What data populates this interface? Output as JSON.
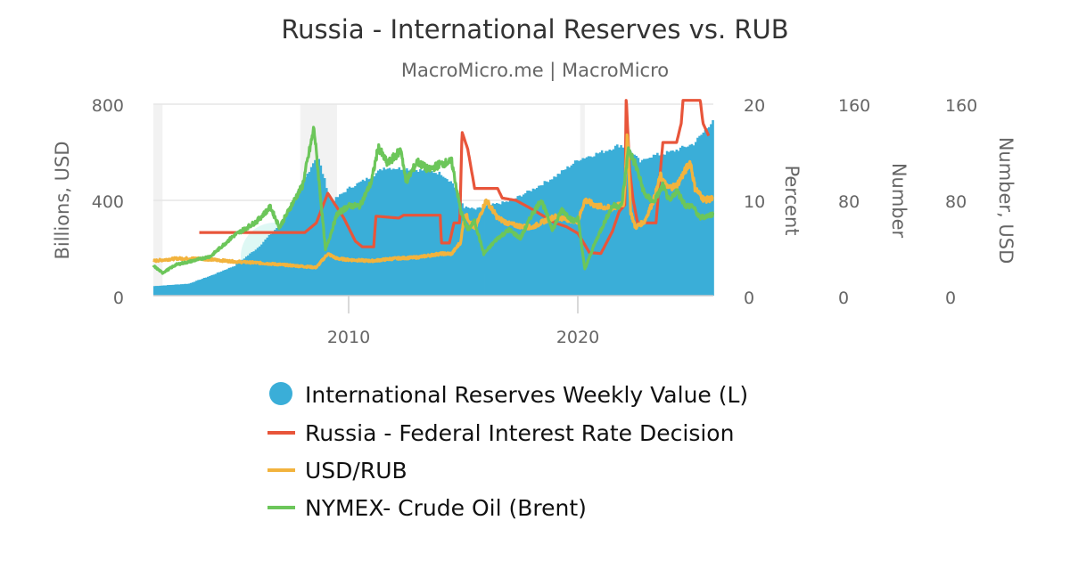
{
  "chart_data": {
    "type": "bar+line",
    "title": "Russia - International Reserves vs. RUB",
    "subtitle": "MacroMicro.me | MacroMicro",
    "watermark": "MacroMicro",
    "x_ticks": [
      "2010",
      "2020"
    ],
    "xlim": [
      2001.5,
      2025.9
    ],
    "grid": "horizontal",
    "legend_position": "bottom",
    "shaded_periods": [
      [
        2001.5,
        2001.9
      ],
      [
        2007.9,
        2009.5
      ],
      [
        2020.1,
        2020.3
      ]
    ],
    "axes": [
      {
        "id": "L",
        "title": "Billions, USD",
        "ylim": [
          0,
          800
        ],
        "ticks": [
          "0",
          "400",
          "800"
        ],
        "side": "left"
      },
      {
        "id": "R1",
        "title": "Percent",
        "ylim": [
          0,
          20
        ],
        "ticks": [
          "0",
          "10",
          "20"
        ],
        "side": "right"
      },
      {
        "id": "R2",
        "title": "Number",
        "ylim": [
          0,
          160
        ],
        "ticks": [
          "0",
          "80",
          "160"
        ],
        "side": "right"
      },
      {
        "id": "R3",
        "title": "Number, USD",
        "ylim": [
          0,
          160
        ],
        "ticks": [
          "0",
          "80",
          "160"
        ],
        "side": "right"
      }
    ],
    "series": [
      {
        "name": "International Reserves Weekly Value (L)",
        "type": "bar",
        "axis": "L",
        "color": "#3aaed8",
        "points": [
          [
            2001.5,
            40
          ],
          [
            2003.0,
            50
          ],
          [
            2004.0,
            85
          ],
          [
            2005.0,
            125
          ],
          [
            2006.0,
            200
          ],
          [
            2007.0,
            300
          ],
          [
            2007.8,
            440
          ],
          [
            2008.6,
            590
          ],
          [
            2009.2,
            390
          ],
          [
            2010.0,
            450
          ],
          [
            2011.0,
            500
          ],
          [
            2011.5,
            535
          ],
          [
            2012.5,
            530
          ],
          [
            2013.5,
            520
          ],
          [
            2014.0,
            510
          ],
          [
            2014.5,
            470
          ],
          [
            2015.0,
            370
          ],
          [
            2015.5,
            360
          ],
          [
            2016.0,
            375
          ],
          [
            2017.0,
            395
          ],
          [
            2018.0,
            445
          ],
          [
            2019.0,
            500
          ],
          [
            2020.0,
            570
          ],
          [
            2021.0,
            600
          ],
          [
            2021.8,
            630
          ],
          [
            2022.3,
            600
          ],
          [
            2022.7,
            555
          ],
          [
            2023.0,
            580
          ],
          [
            2024.0,
            600
          ],
          [
            2025.0,
            635
          ],
          [
            2025.5,
            690
          ],
          [
            2025.9,
            745
          ]
        ]
      },
      {
        "name": "Russia - Federal Interest Rate Decision",
        "type": "line",
        "axis": "R1",
        "color": "#e8553a",
        "points": [
          [
            2003.5,
            6.6
          ],
          [
            2008.1,
            6.6
          ],
          [
            2008.6,
            7.6
          ],
          [
            2009.1,
            10.7
          ],
          [
            2009.8,
            8.1
          ],
          [
            2010.3,
            5.7
          ],
          [
            2010.6,
            5.1
          ],
          [
            2011.1,
            5.1
          ],
          [
            2011.2,
            8.3
          ],
          [
            2012.2,
            8.1
          ],
          [
            2012.4,
            8.4
          ],
          [
            2014.0,
            8.4
          ],
          [
            2014.05,
            5.5
          ],
          [
            2014.4,
            5.5
          ],
          [
            2014.6,
            7.6
          ],
          [
            2014.85,
            7.6
          ],
          [
            2014.95,
            17.1
          ],
          [
            2015.2,
            15.3
          ],
          [
            2015.5,
            11.2
          ],
          [
            2016.5,
            11.2
          ],
          [
            2016.7,
            10.2
          ],
          [
            2017.3,
            9.95
          ],
          [
            2017.8,
            9.3
          ],
          [
            2018.3,
            8.6
          ],
          [
            2019.0,
            7.6
          ],
          [
            2019.5,
            7.2
          ],
          [
            2020.0,
            6.5
          ],
          [
            2020.5,
            4.5
          ],
          [
            2021.0,
            4.4
          ],
          [
            2021.5,
            6.7
          ],
          [
            2021.8,
            8.8
          ],
          [
            2022.05,
            9.5
          ],
          [
            2022.1,
            21
          ],
          [
            2022.25,
            13.2
          ],
          [
            2022.4,
            10.1
          ],
          [
            2022.6,
            7.6
          ],
          [
            2023.4,
            7.6
          ],
          [
            2023.7,
            16
          ],
          [
            2024.3,
            16
          ],
          [
            2024.5,
            18
          ],
          [
            2024.6,
            21
          ],
          [
            2025.3,
            21
          ],
          [
            2025.45,
            18
          ],
          [
            2025.7,
            16.7
          ]
        ]
      },
      {
        "name": "USD/RUB",
        "type": "line",
        "axis": "R2",
        "color": "#f2b33d",
        "points": [
          [
            2001.5,
            29
          ],
          [
            2002.5,
            31
          ],
          [
            2003.5,
            31
          ],
          [
            2005.0,
            28.5
          ],
          [
            2006.0,
            27.5
          ],
          [
            2007.0,
            26
          ],
          [
            2008.0,
            24.5
          ],
          [
            2008.6,
            23.5
          ],
          [
            2009.1,
            35
          ],
          [
            2009.5,
            31
          ],
          [
            2010.0,
            30
          ],
          [
            2011.0,
            29
          ],
          [
            2012.0,
            31
          ],
          [
            2013.0,
            32
          ],
          [
            2014.0,
            35
          ],
          [
            2014.5,
            35
          ],
          [
            2014.9,
            45
          ],
          [
            2015.0,
            61
          ],
          [
            2015.1,
            68
          ],
          [
            2015.5,
            55
          ],
          [
            2016.0,
            80
          ],
          [
            2016.5,
            65
          ],
          [
            2017.0,
            60
          ],
          [
            2017.5,
            58
          ],
          [
            2018.0,
            57
          ],
          [
            2018.5,
            62
          ],
          [
            2019.0,
            66
          ],
          [
            2019.5,
            64
          ],
          [
            2020.0,
            62
          ],
          [
            2020.3,
            80
          ],
          [
            2020.8,
            75
          ],
          [
            2021.5,
            73
          ],
          [
            2022.0,
            77
          ],
          [
            2022.15,
            135
          ],
          [
            2022.3,
            70
          ],
          [
            2022.5,
            57
          ],
          [
            2022.9,
            62
          ],
          [
            2023.3,
            80
          ],
          [
            2023.6,
            100
          ],
          [
            2023.9,
            90
          ],
          [
            2024.3,
            92
          ],
          [
            2024.9,
            112
          ],
          [
            2025.1,
            90
          ],
          [
            2025.5,
            80
          ],
          [
            2025.9,
            81
          ]
        ]
      },
      {
        "name": "NYMEX- Crude Oil (Brent)",
        "type": "line",
        "axis": "R3",
        "color": "#6cc65a",
        "points": [
          [
            2001.5,
            25
          ],
          [
            2001.9,
            19
          ],
          [
            2002.5,
            26
          ],
          [
            2003.0,
            28
          ],
          [
            2004.0,
            33
          ],
          [
            2005.0,
            50
          ],
          [
            2006.0,
            62
          ],
          [
            2006.6,
            74
          ],
          [
            2007.0,
            57
          ],
          [
            2007.5,
            75
          ],
          [
            2008.0,
            92
          ],
          [
            2008.5,
            140
          ],
          [
            2009.0,
            38
          ],
          [
            2009.5,
            68
          ],
          [
            2010.0,
            75
          ],
          [
            2010.5,
            75
          ],
          [
            2011.0,
            95
          ],
          [
            2011.3,
            124
          ],
          [
            2011.7,
            110
          ],
          [
            2012.3,
            122
          ],
          [
            2012.5,
            95
          ],
          [
            2013.0,
            112
          ],
          [
            2013.5,
            105
          ],
          [
            2014.0,
            110
          ],
          [
            2014.5,
            112
          ],
          [
            2014.9,
            70
          ],
          [
            2015.2,
            55
          ],
          [
            2015.5,
            62
          ],
          [
            2015.9,
            35
          ],
          [
            2016.5,
            48
          ],
          [
            2017.0,
            55
          ],
          [
            2017.5,
            48
          ],
          [
            2018.0,
            68
          ],
          [
            2018.4,
            80
          ],
          [
            2018.9,
            55
          ],
          [
            2019.3,
            72
          ],
          [
            2019.8,
            62
          ],
          [
            2020.0,
            65
          ],
          [
            2020.3,
            22
          ],
          [
            2020.7,
            42
          ],
          [
            2021.0,
            55
          ],
          [
            2021.5,
            75
          ],
          [
            2021.9,
            75
          ],
          [
            2022.2,
            122
          ],
          [
            2022.5,
            110
          ],
          [
            2022.9,
            85
          ],
          [
            2023.3,
            78
          ],
          [
            2023.7,
            92
          ],
          [
            2024.0,
            78
          ],
          [
            2024.3,
            88
          ],
          [
            2024.7,
            75
          ],
          [
            2025.0,
            75
          ],
          [
            2025.3,
            65
          ],
          [
            2025.9,
            68
          ]
        ]
      }
    ]
  }
}
